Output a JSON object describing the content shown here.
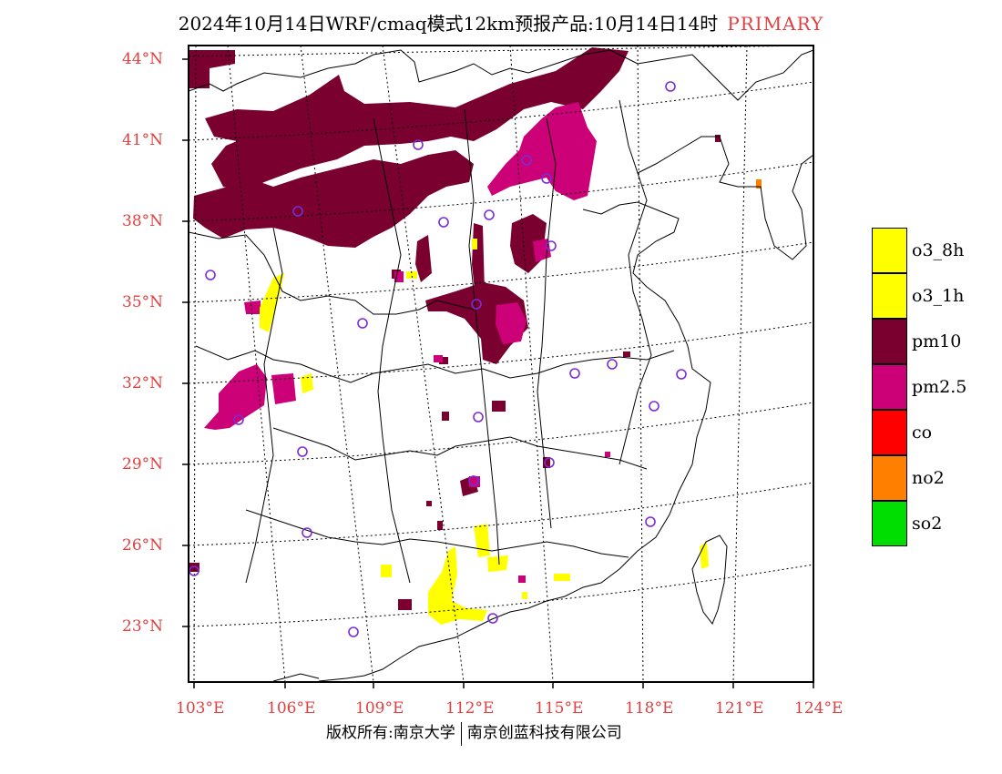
{
  "title": {
    "main": "2024年10月14日WRF/cmaq模式12km预报产品:10月14日14时",
    "tag": "PRIMARY"
  },
  "axes": {
    "lat_labels": [
      "44°N",
      "41°N",
      "38°N",
      "35°N",
      "32°N",
      "29°N",
      "26°N",
      "23°N"
    ],
    "lon_labels": [
      "103°E",
      "106°E",
      "109°E",
      "112°E",
      "115°E",
      "118°E",
      "121°E",
      "124°E"
    ]
  },
  "legend": {
    "items": [
      {
        "label": "o3_8h",
        "color": "#ffff00"
      },
      {
        "label": "o3_1h",
        "color": "#ffff00"
      },
      {
        "label": "pm10",
        "color": "#7a0030"
      },
      {
        "label": "pm2.5",
        "color": "#cc0077"
      },
      {
        "label": "co",
        "color": "#ff0000"
      },
      {
        "label": "no2",
        "color": "#ff7f00"
      },
      {
        "label": "so2",
        "color": "#00dd00"
      }
    ]
  },
  "footer": {
    "left": "版权所有:南京大学",
    "right": "南京创蓝科技有限公司"
  },
  "colors": {
    "axis_label": "#e04040",
    "station_marker": "#7b2cd6",
    "pm10": "#7a0030",
    "pm25": "#cc0077",
    "o3": "#ffff00",
    "no2": "#ff7f00"
  }
}
